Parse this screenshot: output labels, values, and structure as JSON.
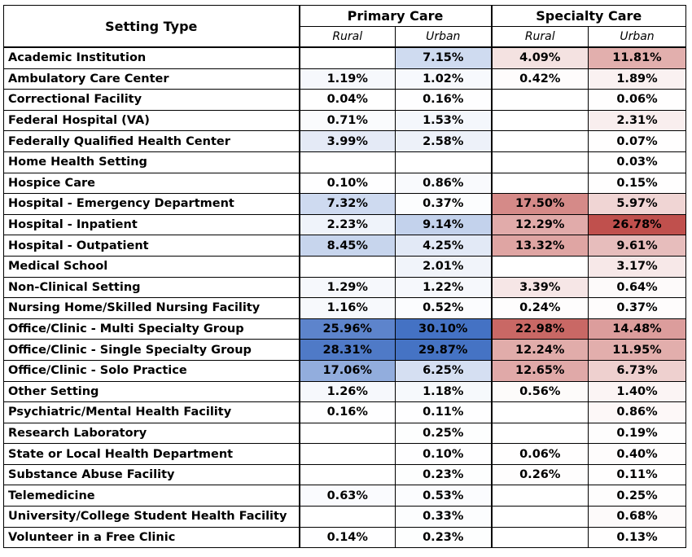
{
  "chart_data": {
    "type": "table",
    "column_groups": [
      {
        "label": "Primary Care",
        "subcolumns": [
          "Rural",
          "Urban"
        ]
      },
      {
        "label": "Specialty Care",
        "subcolumns": [
          "Rural",
          "Urban"
        ]
      }
    ],
    "row_header_label": "Setting Type",
    "rows": [
      {
        "setting": "Academic Institution",
        "values": [
          null,
          7.15,
          4.09,
          11.81
        ],
        "labels": [
          "",
          "7.15%",
          "4.09%",
          "11.81%"
        ]
      },
      {
        "setting": "Ambulatory Care Center",
        "values": [
          1.19,
          1.02,
          0.42,
          1.89
        ],
        "labels": [
          "1.19%",
          "1.02%",
          "0.42%",
          "1.89%"
        ]
      },
      {
        "setting": "Correctional Facility",
        "values": [
          0.04,
          0.16,
          null,
          0.06
        ],
        "labels": [
          "0.04%",
          "0.16%",
          "",
          "0.06%"
        ]
      },
      {
        "setting": "Federal Hospital (VA)",
        "values": [
          0.71,
          1.53,
          null,
          2.31
        ],
        "labels": [
          "0.71%",
          "1.53%",
          "",
          "2.31%"
        ]
      },
      {
        "setting": "Federally Qualified Health Center",
        "values": [
          3.99,
          2.58,
          null,
          0.07
        ],
        "labels": [
          "3.99%",
          "2.58%",
          "",
          "0.07%"
        ]
      },
      {
        "setting": "Home Health Setting",
        "values": [
          null,
          null,
          null,
          0.03
        ],
        "labels": [
          "",
          "",
          "",
          "0.03%"
        ]
      },
      {
        "setting": "Hospice Care",
        "values": [
          0.1,
          0.86,
          null,
          0.15
        ],
        "labels": [
          "0.10%",
          "0.86%",
          "",
          "0.15%"
        ]
      },
      {
        "setting": "Hospital - Emergency Department",
        "values": [
          7.32,
          0.37,
          17.5,
          5.97
        ],
        "labels": [
          "7.32%",
          "0.37%",
          "17.50%",
          "5.97%"
        ]
      },
      {
        "setting": "Hospital - Inpatient",
        "values": [
          2.23,
          9.14,
          12.29,
          26.78
        ],
        "labels": [
          "2.23%",
          "9.14%",
          "12.29%",
          "26.78%"
        ]
      },
      {
        "setting": "Hospital - Outpatient",
        "values": [
          8.45,
          4.25,
          13.32,
          9.61
        ],
        "labels": [
          "8.45%",
          "4.25%",
          "13.32%",
          "9.61%"
        ]
      },
      {
        "setting": "Medical School",
        "values": [
          null,
          2.01,
          null,
          3.17
        ],
        "labels": [
          "",
          "2.01%",
          "",
          "3.17%"
        ]
      },
      {
        "setting": "Non-Clinical Setting",
        "values": [
          1.29,
          1.22,
          3.39,
          0.64
        ],
        "labels": [
          "1.29%",
          "1.22%",
          "3.39%",
          "0.64%"
        ]
      },
      {
        "setting": "Nursing Home/Skilled Nursing Facility",
        "values": [
          1.16,
          0.52,
          0.24,
          0.37
        ],
        "labels": [
          "1.16%",
          "0.52%",
          "0.24%",
          "0.37%"
        ]
      },
      {
        "setting": "Office/Clinic - Multi Specialty Group",
        "values": [
          25.96,
          30.1,
          22.98,
          14.48
        ],
        "labels": [
          "25.96%",
          "30.10%",
          "22.98%",
          "14.48%"
        ]
      },
      {
        "setting": "Office/Clinic - Single Specialty Group",
        "values": [
          28.31,
          29.87,
          12.24,
          11.95
        ],
        "labels": [
          "28.31%",
          "29.87%",
          "12.24%",
          "11.95%"
        ]
      },
      {
        "setting": "Office/Clinic - Solo Practice",
        "values": [
          17.06,
          6.25,
          12.65,
          6.73
        ],
        "labels": [
          "17.06%",
          "6.25%",
          "12.65%",
          "6.73%"
        ]
      },
      {
        "setting": "Other Setting",
        "values": [
          1.26,
          1.18,
          0.56,
          1.4
        ],
        "labels": [
          "1.26%",
          "1.18%",
          "0.56%",
          "1.40%"
        ]
      },
      {
        "setting": "Psychiatric/Mental Health Facility",
        "values": [
          0.16,
          0.11,
          null,
          0.86
        ],
        "labels": [
          "0.16%",
          "0.11%",
          "",
          "0.86%"
        ]
      },
      {
        "setting": "Research Laboratory",
        "values": [
          null,
          0.25,
          null,
          0.19
        ],
        "labels": [
          "",
          "0.25%",
          "",
          "0.19%"
        ]
      },
      {
        "setting": "State or Local Health Department",
        "values": [
          null,
          0.1,
          0.06,
          0.4
        ],
        "labels": [
          "",
          "0.10%",
          "0.06%",
          "0.40%"
        ]
      },
      {
        "setting": "Substance Abuse Facility",
        "values": [
          null,
          0.23,
          0.26,
          0.11
        ],
        "labels": [
          "",
          "0.23%",
          "0.26%",
          "0.11%"
        ]
      },
      {
        "setting": "Telemedicine",
        "values": [
          0.63,
          0.53,
          null,
          0.25
        ],
        "labels": [
          "0.63%",
          "0.53%",
          "",
          "0.25%"
        ]
      },
      {
        "setting": "University/College Student Health Facility",
        "values": [
          null,
          0.33,
          null,
          0.68
        ],
        "labels": [
          "",
          "0.33%",
          "",
          "0.68%"
        ]
      },
      {
        "setting": "Volunteer in a Free Clinic",
        "values": [
          0.14,
          0.23,
          null,
          0.13
        ],
        "labels": [
          "0.14%",
          "0.23%",
          "",
          "0.13%"
        ]
      }
    ],
    "color_scale": {
      "primary_max_color": "#4472c4",
      "specialty_max_color": "#c0504d",
      "min_color": "#ffffff",
      "primary_max_value": 30.1,
      "specialty_max_value": 26.78
    }
  }
}
